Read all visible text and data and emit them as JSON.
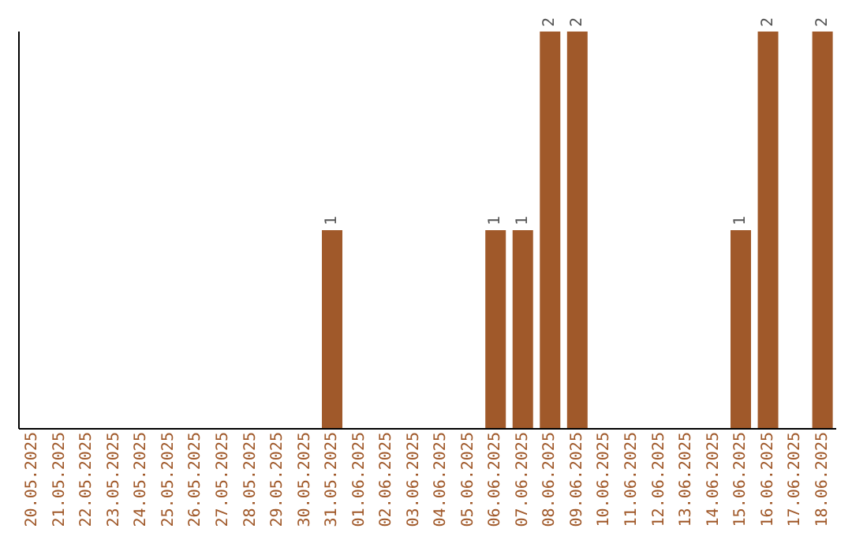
{
  "chart_data": {
    "type": "bar",
    "relative": false,
    "categories": [
      "20.05.2025",
      "21.05.2025",
      "22.05.2025",
      "23.05.2025",
      "24.05.2025",
      "25.05.2025",
      "26.05.2025",
      "27.05.2025",
      "28.05.2025",
      "29.05.2025",
      "30.05.2025",
      "31.05.2025",
      "01.06.2025",
      "02.06.2025",
      "03.06.2025",
      "04.06.2025",
      "05.06.2025",
      "06.06.2025",
      "07.06.2025",
      "08.06.2025",
      "09.06.2025",
      "10.06.2025",
      "11.06.2025",
      "12.06.2025",
      "13.06.2025",
      "14.06.2025",
      "15.06.2025",
      "16.06.2025",
      "17.06.2025",
      "18.06.2025"
    ],
    "values": [
      0,
      0,
      0,
      0,
      0,
      0,
      0,
      0,
      0,
      0,
      0,
      1,
      0,
      0,
      0,
      0,
      0,
      1,
      1,
      2,
      2,
      0,
      0,
      0,
      0,
      0,
      1,
      2,
      0,
      2
    ],
    "value_labels": [
      null,
      null,
      null,
      null,
      null,
      null,
      null,
      null,
      null,
      null,
      null,
      "1",
      null,
      null,
      null,
      null,
      null,
      "1",
      "1",
      "2",
      "2",
      null,
      null,
      null,
      null,
      null,
      "1",
      "2",
      null,
      "2"
    ],
    "color": "#a0592a",
    "grid": false,
    "legend": false
  }
}
